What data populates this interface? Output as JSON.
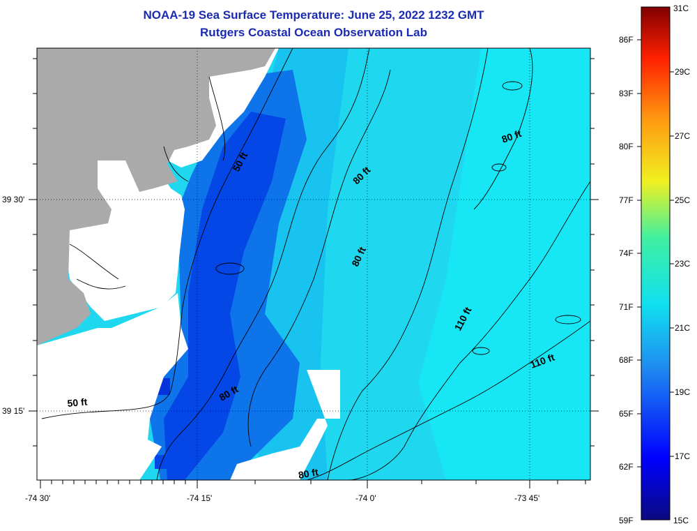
{
  "title": {
    "line1": "NOAA-19 Sea Surface Temperature:  June 25, 2022 1232 GMT",
    "line2": "Rutgers Coastal Ocean Observation Lab"
  },
  "map": {
    "lon_labels": [
      "-74 30'",
      "-74 15'",
      "-74 0'",
      "-73 45'"
    ],
    "lat_labels": [
      "39 30'",
      "39 15'"
    ],
    "contour_labels": [
      {
        "text": "50 ft",
        "rot": -62
      },
      {
        "text": "80 ft",
        "rot": -45
      },
      {
        "text": "80 ft",
        "rot": -20
      },
      {
        "text": "80 ft",
        "rot": -65
      },
      {
        "text": "110 ft",
        "rot": -62
      },
      {
        "text": "110 ft",
        "rot": -20
      },
      {
        "text": "80 ft",
        "rot": -30
      },
      {
        "text": "50 ft",
        "rot": -5
      },
      {
        "text": "80 ft",
        "rot": -10
      }
    ],
    "colors": {
      "land": "#aaaaaa",
      "nodata": "#ffffff"
    }
  },
  "colorbar": {
    "fahrenheit": [
      "86F",
      "83F",
      "80F",
      "77F",
      "74F",
      "71F",
      "68F",
      "65F",
      "62F",
      "59F"
    ],
    "celsius": [
      "31C",
      "29C",
      "27C",
      "25C",
      "23C",
      "21C",
      "19C",
      "17C",
      "15C"
    ]
  }
}
